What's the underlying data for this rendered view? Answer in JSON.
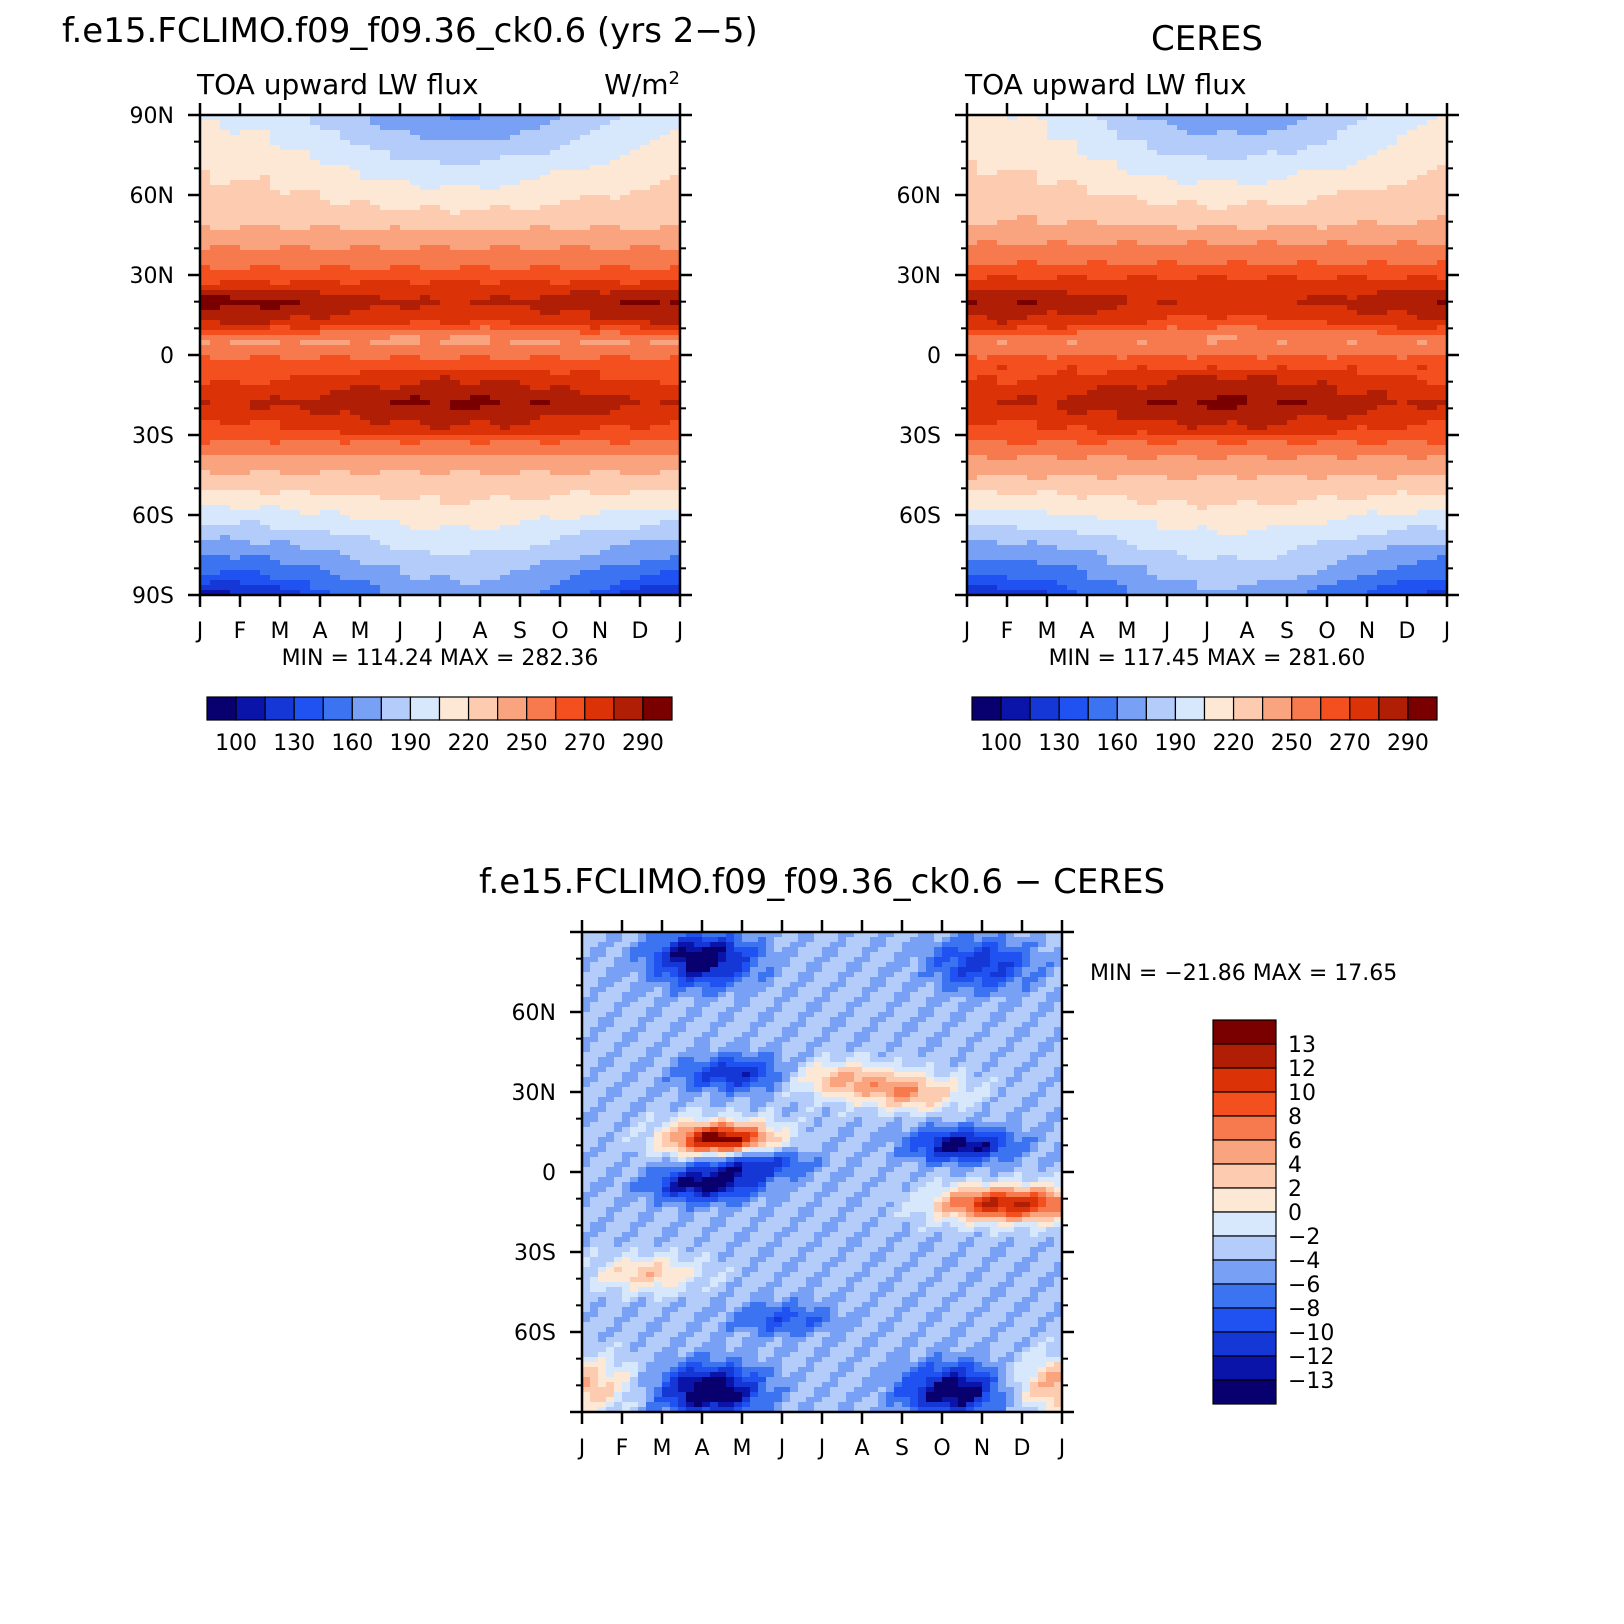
{
  "panels": [
    {
      "id": "model",
      "title": "f.e15.FCLIMO.f09_f09.36_ck0.6 (yrs 2−5)",
      "left_label": "TOA upward LW flux",
      "right_label": "W/m",
      "right_label_sup": "2",
      "y_ticks": [
        "90N",
        "60N",
        "30N",
        "0",
        "30S",
        "60S",
        "90S"
      ],
      "x_ticks": [
        "J",
        "F",
        "M",
        "A",
        "M",
        "J",
        "J",
        "A",
        "S",
        "O",
        "N",
        "D",
        "J"
      ],
      "stats": "MIN =  114.24  MAX =  282.36",
      "cbar_labels": [
        "100",
        "130",
        "160",
        "190",
        "220",
        "250",
        "270",
        "290"
      ]
    },
    {
      "id": "ceres",
      "title": "CERES",
      "left_label": "TOA upward LW flux",
      "right_label": "",
      "right_label_sup": "",
      "y_ticks": [
        "60N",
        "30N",
        "0",
        "30S",
        "60S"
      ],
      "x_ticks": [
        "J",
        "F",
        "M",
        "A",
        "M",
        "J",
        "J",
        "A",
        "S",
        "O",
        "N",
        "D",
        "J"
      ],
      "stats": "MIN =  117.45  MAX =  281.60",
      "cbar_labels": [
        "100",
        "130",
        "160",
        "190",
        "220",
        "250",
        "270",
        "290"
      ]
    },
    {
      "id": "diff",
      "title": "f.e15.FCLIMO.f09_f09.36_ck0.6 − CERES",
      "y_ticks": [
        "60N",
        "30N",
        "0",
        "30S",
        "60S"
      ],
      "x_ticks": [
        "J",
        "F",
        "M",
        "A",
        "M",
        "J",
        "J",
        "A",
        "S",
        "O",
        "N",
        "D",
        "J"
      ],
      "stats": "MIN = −21.86  MAX =   17.65",
      "cbar_labels": [
        "13",
        "12",
        "10",
        "8",
        "6",
        "4",
        "2",
        "0",
        "−2",
        "−4",
        "−6",
        "−8",
        "−10",
        "−12",
        "−13"
      ]
    }
  ],
  "colors": {
    "flux_palette": [
      "#08006e",
      "#0a14a8",
      "#1537d6",
      "#1f52f0",
      "#3c73f0",
      "#78a0f5",
      "#b4ccfa",
      "#d8e8fc",
      "#fde8d5",
      "#fccbb0",
      "#f9a47e",
      "#f77a4e",
      "#f44f1f",
      "#dc3208",
      "#b01e05",
      "#7a0000"
    ],
    "diff_palette": [
      "#7a0000",
      "#b01e05",
      "#dc3208",
      "#f44f1f",
      "#f77a4e",
      "#f9a47e",
      "#fccbb0",
      "#fde8d5",
      "#d8e8fc",
      "#b4ccfa",
      "#78a0f5",
      "#3c73f0",
      "#1f52f0",
      "#1537d6",
      "#0a14a8",
      "#08006e"
    ]
  },
  "chart_data": [
    {
      "type": "heatmap",
      "title": "f.e15.FCLIMO.f09_f09.36_ck0.6 (yrs 2−5)",
      "variable": "TOA upward LW flux",
      "units": "W/m2",
      "x_categories": [
        "J",
        "F",
        "M",
        "A",
        "M",
        "J",
        "J",
        "A",
        "S",
        "O",
        "N",
        "D",
        "J"
      ],
      "y_range": [
        -90,
        90
      ],
      "contour_levels": [
        100,
        110,
        120,
        130,
        145,
        160,
        175,
        190,
        205,
        220,
        235,
        250,
        260,
        270,
        280,
        290
      ],
      "min": 114.24,
      "max": 282.36,
      "band_profile_lat": [
        90,
        70,
        50,
        30,
        20,
        12,
        5,
        0,
        -8,
        -18,
        -28,
        -40,
        -55,
        -70,
        -90
      ],
      "band_profile_val": [
        165,
        190,
        215,
        255,
        277,
        265,
        233,
        248,
        262,
        276,
        262,
        228,
        200,
        170,
        130
      ]
    },
    {
      "type": "heatmap",
      "title": "CERES",
      "variable": "TOA upward LW flux",
      "units": "W/m2",
      "x_categories": [
        "J",
        "F",
        "M",
        "A",
        "M",
        "J",
        "J",
        "A",
        "S",
        "O",
        "N",
        "D",
        "J"
      ],
      "y_range": [
        -90,
        90
      ],
      "contour_levels": [
        100,
        110,
        120,
        130,
        145,
        160,
        175,
        190,
        205,
        220,
        235,
        250,
        260,
        270,
        280,
        290
      ],
      "min": 117.45,
      "max": 281.6,
      "band_profile_lat": [
        90,
        70,
        50,
        30,
        20,
        12,
        5,
        0,
        -8,
        -18,
        -28,
        -40,
        -55,
        -70,
        -90
      ],
      "band_profile_val": [
        170,
        193,
        218,
        258,
        274,
        262,
        236,
        250,
        264,
        276,
        262,
        230,
        202,
        172,
        135
      ]
    },
    {
      "type": "heatmap",
      "title": "f.e15.FCLIMO.f09_f09.36_ck0.6 − CERES",
      "variable": "TOA upward LW flux difference",
      "units": "W/m2",
      "x_categories": [
        "J",
        "F",
        "M",
        "A",
        "M",
        "J",
        "J",
        "A",
        "S",
        "O",
        "N",
        "D",
        "J"
      ],
      "y_range": [
        -90,
        90
      ],
      "contour_levels": [
        -13,
        -12,
        -10,
        -8,
        -6,
        -4,
        -2,
        0,
        2,
        4,
        6,
        8,
        10,
        12,
        13
      ],
      "min": -21.86,
      "max": 17.65,
      "features": [
        {
          "month": 3.0,
          "lat": 80,
          "value": -15
        },
        {
          "month": 10.0,
          "lat": 78,
          "value": -11
        },
        {
          "month": 3.8,
          "lat": 37,
          "value": -12
        },
        {
          "month": 6.5,
          "lat": 35,
          "value": 4
        },
        {
          "month": 8.2,
          "lat": 30,
          "value": 5
        },
        {
          "month": 3.5,
          "lat": 12,
          "value": 16
        },
        {
          "month": 9.5,
          "lat": 10,
          "value": -14
        },
        {
          "month": 4.2,
          "lat": 4,
          "value": -13
        },
        {
          "month": 3.0,
          "lat": -5,
          "value": -14
        },
        {
          "month": 10.0,
          "lat": -12,
          "value": 8
        },
        {
          "month": 11.5,
          "lat": -12,
          "value": 7
        },
        {
          "month": 1.6,
          "lat": -38,
          "value": 3
        },
        {
          "month": 5.0,
          "lat": -55,
          "value": -9
        },
        {
          "month": 3.2,
          "lat": -82,
          "value": -16
        },
        {
          "month": 9.3,
          "lat": -82,
          "value": -15
        },
        {
          "month": 12.0,
          "lat": -80,
          "value": 5
        },
        {
          "month": 0.0,
          "lat": -80,
          "value": 4
        }
      ]
    }
  ]
}
